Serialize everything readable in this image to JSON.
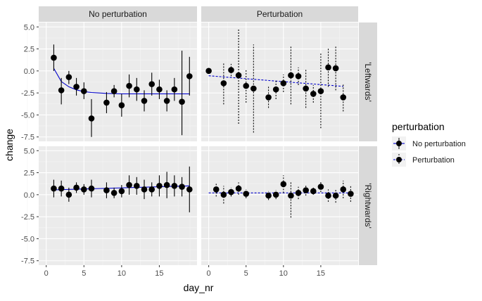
{
  "chart_data": {
    "type": "scatter",
    "xlabel": "day_nr",
    "ylabel": "change",
    "xlim": [
      -1,
      20
    ],
    "ylim": [
      -8,
      5.5
    ],
    "x_ticks": [
      0,
      5,
      10,
      15
    ],
    "y_ticks": [
      5,
      2.5,
      0,
      -2.5,
      -5,
      -7.5
    ],
    "y_tick_labels": [
      "5.0",
      "2.5",
      "0.0",
      "-2.5",
      "-5.0",
      "-7.5"
    ],
    "col_facets": [
      "No perturbation",
      "Perturbation"
    ],
    "row_facets": [
      "'Leftwards'",
      "'Rightwards'"
    ],
    "grid": true,
    "legend": {
      "position": "right",
      "title": "perturbation",
      "items": [
        {
          "label": "No perturbation",
          "color": "#0000cc",
          "dash": "solid"
        },
        {
          "label": "Perturbation",
          "color": "#0000cc",
          "dash": "dotted"
        }
      ]
    },
    "panels": [
      {
        "row": 0,
        "col": 0,
        "line_style": "solid",
        "points": [
          {
            "x": 1,
            "y": 1.5,
            "lo": 0.0,
            "hi": 3.0
          },
          {
            "x": 2,
            "y": -2.2,
            "lo": -3.8,
            "hi": -0.8
          },
          {
            "x": 3,
            "y": -0.7,
            "lo": -1.5,
            "hi": 0.0
          },
          {
            "x": 4,
            "y": -1.8,
            "lo": -2.8,
            "hi": -0.8
          },
          {
            "x": 5,
            "y": -2.3,
            "lo": -3.2,
            "hi": -1.3
          },
          {
            "x": 6,
            "y": -5.4,
            "lo": -7.5,
            "hi": -3.2
          },
          {
            "x": 8,
            "y": -3.6,
            "lo": -4.8,
            "hi": -2.4
          },
          {
            "x": 9,
            "y": -2.3,
            "lo": -3.0,
            "hi": -1.6
          },
          {
            "x": 10,
            "y": -3.9,
            "lo": -5.2,
            "hi": -2.6
          },
          {
            "x": 11,
            "y": -1.7,
            "lo": -3.0,
            "hi": -0.4
          },
          {
            "x": 12,
            "y": -2.1,
            "lo": -3.4,
            "hi": -0.8
          },
          {
            "x": 13,
            "y": -3.4,
            "lo": -4.6,
            "hi": -2.2
          },
          {
            "x": 14,
            "y": -1.5,
            "lo": -2.8,
            "hi": -0.2
          },
          {
            "x": 15,
            "y": -2.1,
            "lo": -3.2,
            "hi": -1.0
          },
          {
            "x": 16,
            "y": -3.4,
            "lo": -4.6,
            "hi": -2.2
          },
          {
            "x": 17,
            "y": -2.1,
            "lo": -3.4,
            "hi": -0.8
          },
          {
            "x": 18,
            "y": -3.5,
            "lo": -7.3,
            "hi": 2.3
          },
          {
            "x": 19,
            "y": -0.6,
            "lo": -2.8,
            "hi": 1.6
          }
        ],
        "fit": [
          [
            1,
            0.3
          ],
          [
            2,
            -1.2
          ],
          [
            3,
            -1.8
          ],
          [
            4,
            -2.15
          ],
          [
            5,
            -2.35
          ],
          [
            6,
            -2.45
          ],
          [
            8,
            -2.55
          ],
          [
            10,
            -2.6
          ],
          [
            12,
            -2.6
          ],
          [
            15,
            -2.6
          ],
          [
            19,
            -2.6
          ]
        ]
      },
      {
        "row": 0,
        "col": 1,
        "line_style": "dotted",
        "points": [
          {
            "x": 0,
            "y": 0.0,
            "lo": -0.2,
            "hi": 0.2
          },
          {
            "x": 2,
            "y": -1.4,
            "lo": -3.8,
            "hi": 1.0
          },
          {
            "x": 3,
            "y": 0.1,
            "lo": -0.6,
            "hi": 0.8
          },
          {
            "x": 4,
            "y": -0.5,
            "lo": -6.0,
            "hi": 4.8
          },
          {
            "x": 5,
            "y": -1.7,
            "lo": -3.6,
            "hi": 0.2
          },
          {
            "x": 6,
            "y": -2.0,
            "lo": -7.0,
            "hi": 3.0
          },
          {
            "x": 8,
            "y": -3.0,
            "lo": -4.2,
            "hi": -1.8
          },
          {
            "x": 9,
            "y": -2.1,
            "lo": -3.2,
            "hi": -1.0
          },
          {
            "x": 10,
            "y": -1.4,
            "lo": -2.4,
            "hi": -0.4
          },
          {
            "x": 11,
            "y": -0.5,
            "lo": -3.8,
            "hi": 2.8
          },
          {
            "x": 12,
            "y": -0.6,
            "lo": -1.6,
            "hi": 0.4
          },
          {
            "x": 13,
            "y": -2.0,
            "lo": -4.2,
            "hi": 0.2
          },
          {
            "x": 14,
            "y": -2.6,
            "lo": -3.6,
            "hi": -1.6
          },
          {
            "x": 15,
            "y": -2.3,
            "lo": -6.5,
            "hi": 2.0
          },
          {
            "x": 16,
            "y": 0.4,
            "lo": -1.8,
            "hi": 2.6
          },
          {
            "x": 17,
            "y": 0.3,
            "lo": -2.2,
            "hi": 2.8
          },
          {
            "x": 18,
            "y": -3.0,
            "lo": -4.6,
            "hi": -1.4
          }
        ],
        "fit": [
          [
            0,
            -0.55
          ],
          [
            18,
            -1.75
          ]
        ]
      },
      {
        "row": 1,
        "col": 0,
        "line_style": "solid",
        "points": [
          {
            "x": 1,
            "y": 0.7,
            "lo": -0.3,
            "hi": 1.7
          },
          {
            "x": 2,
            "y": 0.7,
            "lo": -0.2,
            "hi": 1.6
          },
          {
            "x": 3,
            "y": 0.0,
            "lo": -0.8,
            "hi": 0.8
          },
          {
            "x": 4,
            "y": 0.8,
            "lo": 0.2,
            "hi": 1.4
          },
          {
            "x": 5,
            "y": 0.6,
            "lo": 0.0,
            "hi": 1.2
          },
          {
            "x": 6,
            "y": 0.7,
            "lo": -0.3,
            "hi": 1.7
          },
          {
            "x": 8,
            "y": 0.5,
            "lo": -0.4,
            "hi": 1.4
          },
          {
            "x": 9,
            "y": 0.2,
            "lo": -0.4,
            "hi": 0.8
          },
          {
            "x": 10,
            "y": 0.4,
            "lo": -0.3,
            "hi": 1.1
          },
          {
            "x": 11,
            "y": 1.1,
            "lo": 0.0,
            "hi": 2.2
          },
          {
            "x": 12,
            "y": 1.0,
            "lo": 0.0,
            "hi": 2.0
          },
          {
            "x": 13,
            "y": 0.6,
            "lo": -0.5,
            "hi": 1.7
          },
          {
            "x": 14,
            "y": 0.6,
            "lo": -0.2,
            "hi": 1.4
          },
          {
            "x": 15,
            "y": 1.0,
            "lo": -0.2,
            "hi": 2.2
          },
          {
            "x": 16,
            "y": 1.1,
            "lo": -0.4,
            "hi": 2.6
          },
          {
            "x": 17,
            "y": 1.0,
            "lo": -0.2,
            "hi": 2.2
          },
          {
            "x": 18,
            "y": 0.9,
            "lo": -0.2,
            "hi": 2.0
          },
          {
            "x": 19,
            "y": 0.6,
            "lo": -2.0,
            "hi": 3.2
          }
        ],
        "fit": [
          [
            1,
            0.55
          ],
          [
            19,
            1.0
          ]
        ]
      },
      {
        "row": 1,
        "col": 1,
        "line_style": "dotted",
        "points": [
          {
            "x": 1,
            "y": 0.6,
            "lo": -0.2,
            "hi": 1.4
          },
          {
            "x": 2,
            "y": 0.0,
            "lo": -1.0,
            "hi": 1.0
          },
          {
            "x": 3,
            "y": 0.3,
            "lo": -0.2,
            "hi": 0.8
          },
          {
            "x": 4,
            "y": 0.7,
            "lo": 0.0,
            "hi": 1.4
          },
          {
            "x": 5,
            "y": 0.1,
            "lo": -0.4,
            "hi": 0.6
          },
          {
            "x": 8,
            "y": -0.1,
            "lo": -0.6,
            "hi": 0.4
          },
          {
            "x": 9,
            "y": 0.0,
            "lo": -0.5,
            "hi": 0.5
          },
          {
            "x": 10,
            "y": 1.2,
            "lo": 0.2,
            "hi": 2.2
          },
          {
            "x": 11,
            "y": -0.1,
            "lo": -2.6,
            "hi": 1.4
          },
          {
            "x": 12,
            "y": 0.2,
            "lo": -0.5,
            "hi": 0.9
          },
          {
            "x": 13,
            "y": 0.5,
            "lo": -0.1,
            "hi": 1.1
          },
          {
            "x": 14,
            "y": 0.4,
            "lo": 0.0,
            "hi": 0.8
          },
          {
            "x": 15,
            "y": 0.9,
            "lo": 0.3,
            "hi": 1.5
          },
          {
            "x": 16,
            "y": -0.1,
            "lo": -0.8,
            "hi": 0.6
          },
          {
            "x": 17,
            "y": -0.1,
            "lo": -0.9,
            "hi": 0.7
          },
          {
            "x": 18,
            "y": 0.6,
            "lo": -0.4,
            "hi": 1.6
          },
          {
            "x": 19,
            "y": 0.1,
            "lo": -0.8,
            "hi": 1.0
          }
        ],
        "fit": [
          [
            0,
            0.2
          ],
          [
            19,
            0.2
          ]
        ]
      }
    ]
  }
}
